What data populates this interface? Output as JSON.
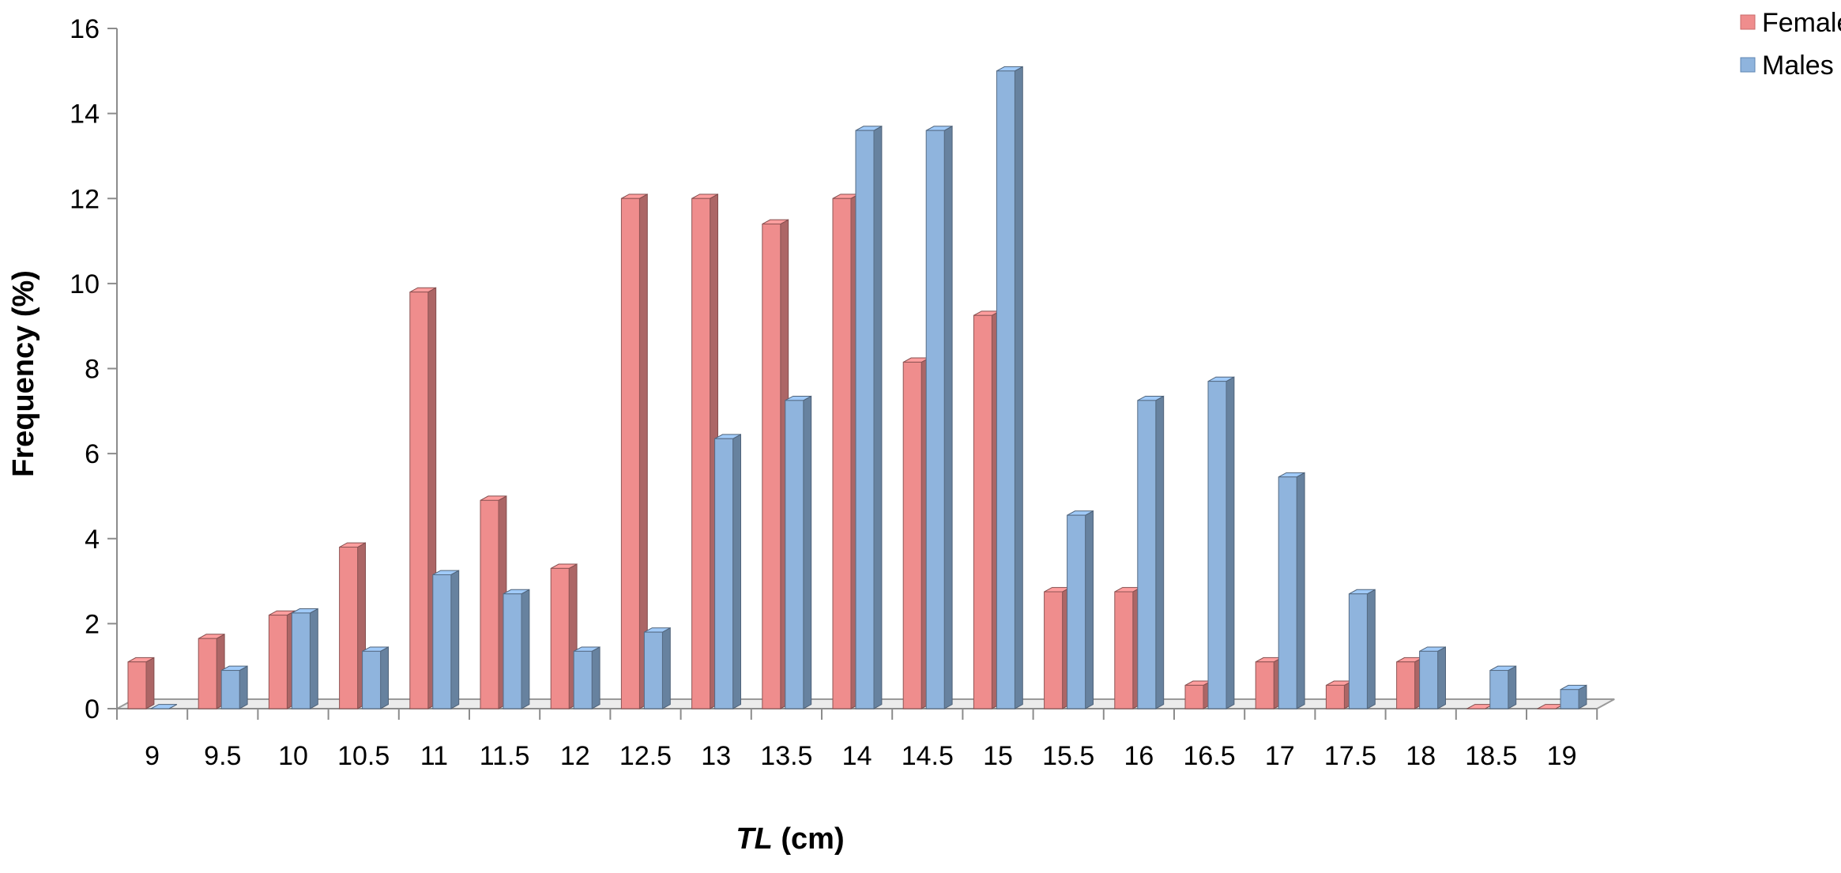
{
  "chart_data": {
    "type": "bar",
    "title": "",
    "xlabel": {
      "italic_part": "TL",
      "rest": " (cm)"
    },
    "ylabel": "Frequency  (%)",
    "ylim": [
      0,
      16
    ],
    "yticks": [
      "0",
      "2",
      "4",
      "6",
      "8",
      "10",
      "12",
      "14",
      "16"
    ],
    "grid": false,
    "legend_position": "top-right",
    "categories": [
      "9",
      "9.5",
      "10",
      "10.5",
      "11",
      "11.5",
      "12",
      "12.5",
      "13",
      "13.5",
      "14",
      "14.5",
      "15",
      "15.5",
      "16",
      "16.5",
      "17",
      "17.5",
      "18",
      "18.5",
      "19"
    ],
    "series": [
      {
        "name": "Females",
        "color": "#ef8d8d",
        "values": [
          1.1,
          1.65,
          2.2,
          3.8,
          9.8,
          4.9,
          3.3,
          12.0,
          12.0,
          11.4,
          12.0,
          8.15,
          9.25,
          2.75,
          2.75,
          0.55,
          1.1,
          0.55,
          1.1,
          0,
          0
        ]
      },
      {
        "name": "Males",
        "color": "#8fb4dd",
        "values": [
          0,
          0.9,
          2.25,
          1.35,
          3.15,
          2.7,
          1.35,
          1.8,
          6.35,
          7.25,
          13.6,
          13.6,
          15.0,
          4.55,
          7.25,
          7.7,
          5.45,
          2.7,
          1.35,
          0.9,
          0.45
        ]
      }
    ]
  }
}
